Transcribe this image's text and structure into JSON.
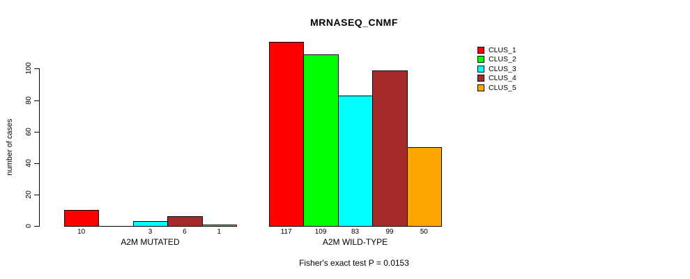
{
  "title": "MRNASEQ_CNMF",
  "chart_data": {
    "type": "bar",
    "title": "MRNASEQ_CNMF",
    "xlabel": "",
    "ylabel": "number of cases",
    "yticks": [
      0,
      20,
      40,
      60,
      80,
      100
    ],
    "ylim": [
      0,
      117
    ],
    "grid": false,
    "legend_position": "top-right",
    "categories": [
      "A2M MUTATED",
      "A2M WILD-TYPE"
    ],
    "series": [
      {
        "name": "CLUS_1",
        "color": "#FF0000",
        "values": [
          10,
          117
        ]
      },
      {
        "name": "CLUS_2",
        "color": "#00FF00",
        "values": [
          0,
          109
        ]
      },
      {
        "name": "CLUS_3",
        "color": "#00FFFF",
        "values": [
          3,
          83
        ]
      },
      {
        "name": "CLUS_4",
        "color": "#A52A2A",
        "values": [
          6,
          99
        ]
      },
      {
        "name": "CLUS_5",
        "color": "#FFA500",
        "values": [
          1,
          50
        ]
      }
    ],
    "bar_value_labels": {
      "A2M MUTATED": [
        "10",
        "",
        "3",
        "6",
        "1"
      ],
      "A2M WILD-TYPE": [
        "117",
        "109",
        "83",
        "99",
        "50"
      ]
    },
    "footnote": "Fisher's exact test P = 0.0153"
  },
  "colors": {
    "axis": "#000000",
    "background": "#FFFFFF"
  }
}
